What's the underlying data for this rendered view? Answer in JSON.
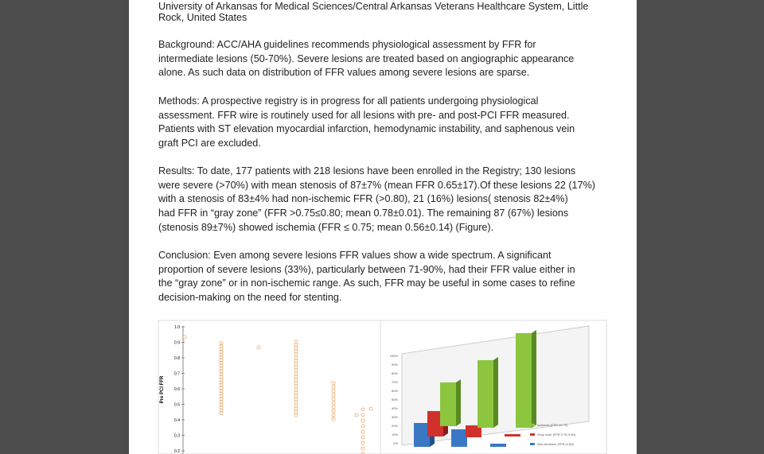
{
  "header": {
    "lines": [
      "University of Arkansas for Medical Sciences/Central Arkansas Veterans Healthcare System, Little",
      "Rock, United States"
    ]
  },
  "paragraphs": [
    {
      "lines": [
        "Background: ACC/AHA guidelines recommends physiological assessment by FFR for",
        "intermediate lesions (50-70%). Severe lesions are treated based on angiographic appearance",
        "alone.  As such data on distribution of FFR values among severe lesions are sparse."
      ]
    },
    {
      "lines": [
        "Methods:  A prospective registry is in progress for all patients undergoing physiological",
        "assessment.  FFR wire is routinely used for all lesions with pre- and post-PCI FFR measured.",
        "Patients with ST elevation myocardial infarction, hemodynamic instability, and saphenous vein",
        "graft PCI are excluded."
      ]
    },
    {
      "lines": [
        "Results: To date, 177 patients with 218 lesions have been enrolled in the Registry;  130 lesions",
        "were severe (>70%) with mean stenosis of 87±7% (mean FFR 0.65±17).Of these lesions 22 (17%)",
        "with a  stenosis of 83±4% had non-ischemic FFR (>0.80), 21 (16%)  lesions(  stenosis  82±4%)",
        "had FFR in “gray zone” (FFR >0.75≤0.80; mean 0.78±0.01).    The remaining 87 (67%) lesions",
        "(stenosis 89±7%) showed ischemia (FFR ≤ 0.75; mean 0.56±0.14) (Figure)."
      ]
    },
    {
      "lines": [
        "Conclusion:   Even among severe lesions FFR values show a wide spectrum. A significant",
        "proportion of severe lesions (33%), particularly between 71-90%, had their FFR value either in",
        "the “gray zone” or in non-ischemic range.  As such, FFR may be useful in some cases to refine",
        "decision-making on the need for stenting."
      ]
    }
  ],
  "figure": {
    "scatter": {
      "y_label": "Pre PCI FFR",
      "y_ticks": [
        "1.0",
        "0.9",
        "0.8",
        "0.7",
        "0.6",
        "0.5",
        "0.4",
        "0.3",
        "0.2"
      ]
    },
    "bars": {
      "y_ticks": [
        "100%",
        "90%",
        "80%",
        "70%",
        "60%",
        "50%",
        "40%",
        "30%",
        "20%",
        "10%",
        "0%"
      ],
      "legend": [
        "Ischemic (FFR ≤0.75)",
        "Gray zone (FFR 0.76-0.80)",
        "Non-ischemic (FFR>0.80)"
      ]
    }
  }
}
